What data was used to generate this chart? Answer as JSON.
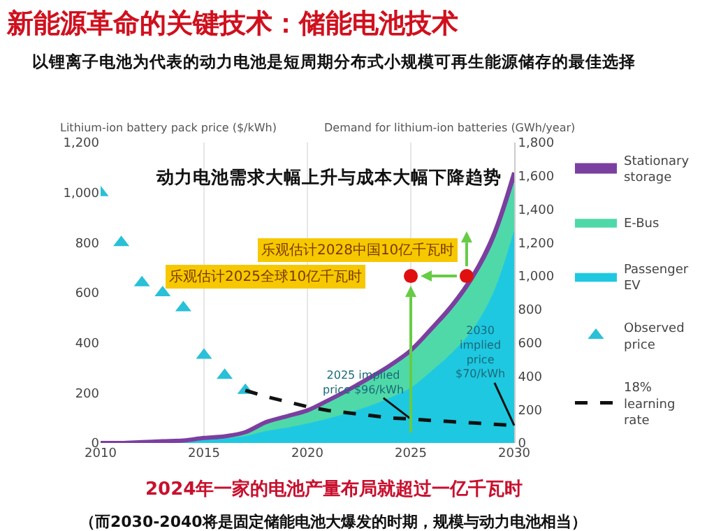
{
  "chart_data": {
    "type": "area",
    "stacked": true,
    "title": "新能源革命的关键技术：储能电池技术",
    "subtitle": "以锂离子电池为代表的动力电池是短周期分布式小规模可再生能源储存的最佳选择",
    "ylabel": "Lithium-ion battery pack price ($/kWh)",
    "y2label": "Demand for lithium-ion batteries (GWh/year)",
    "x": [
      2010,
      2011,
      2012,
      2013,
      2014,
      2015,
      2016,
      2017,
      2018,
      2019,
      2020,
      2021,
      2022,
      2023,
      2024,
      2025,
      2026,
      2027,
      2028,
      2029,
      2030
    ],
    "series": [
      {
        "name": "Passenger EV",
        "color": "#1ec8e0",
        "axis": "y2",
        "values": [
          0,
          0,
          5,
          5,
          10,
          20,
          25,
          40,
          70,
          90,
          115,
          145,
          180,
          220,
          270,
          330,
          430,
          540,
          680,
          900,
          1270
        ]
      },
      {
        "name": "E-Bus",
        "color": "#4fd9a8",
        "axis": "y2",
        "values": [
          0,
          0,
          0,
          5,
          5,
          10,
          15,
          25,
          50,
          65,
          75,
          105,
          130,
          160,
          185,
          210,
          235,
          260,
          290,
          300,
          290
        ]
      },
      {
        "name": "Stationary storage",
        "color": "#7b3fa0",
        "axis": "y2",
        "values": [
          0,
          0,
          0,
          0,
          0,
          0,
          0,
          0,
          5,
          5,
          5,
          5,
          10,
          10,
          10,
          15,
          20,
          25,
          30,
          45,
          60
        ]
      },
      {
        "name": "Observed price",
        "type": "scatter",
        "marker": "triangle",
        "color": "#29c0d8",
        "x": [
          2010,
          2011,
          2012,
          2013,
          2014,
          2015,
          2016,
          2017
        ],
        "values": [
          1000,
          800,
          640,
          600,
          540,
          350,
          270,
          210
        ]
      },
      {
        "name": "18% learning rate",
        "type": "line",
        "line_style": "dashed",
        "color": "#111111",
        "x": [
          2017,
          2018,
          2019,
          2020,
          2021,
          2022,
          2023,
          2024,
          2025,
          2026,
          2027,
          2028,
          2029,
          2030
        ],
        "values": [
          210,
          185,
          165,
          145,
          130,
          120,
          110,
          100,
          96,
          90,
          85,
          80,
          75,
          70
        ]
      },
      {
        "type": "scatter",
        "marker": "circle",
        "color": "#e01010",
        "axis": "y2",
        "x": [
          2025,
          2027.7
        ],
        "values": [
          1000,
          1000
        ]
      }
    ],
    "xlim": [
      2010,
      2030
    ],
    "xticks": [
      2010,
      2015,
      2020,
      2025,
      2030
    ],
    "ylim": [
      0,
      1200
    ],
    "yticks": [
      0,
      200,
      400,
      600,
      800,
      {
        "value": 1000,
        "label": "1,000"
      },
      {
        "value": 1200,
        "label": "1,200"
      }
    ],
    "y2lim": [
      0,
      1800
    ],
    "y2ticks": [
      0,
      200,
      400,
      600,
      800,
      {
        "value": 1000,
        "label": "1,000"
      },
      {
        "value": 1200,
        "label": "1,200"
      },
      {
        "value": 1400,
        "label": "1,400"
      },
      {
        "value": 1600,
        "label": "1,600"
      },
      {
        "value": 1800,
        "label": "1,800"
      }
    ],
    "grid": "x",
    "legend": "right",
    "annotations": [
      "动力电池需求大幅上升与成本大幅下降趋势",
      "乐观估计2025全球10亿千瓦时",
      "乐观估计2028中国10亿千瓦时",
      {
        "text": "2025 implied price $96/kWh",
        "x": 2025,
        "y": 96
      },
      {
        "text": "2030 implied price $70/kWh",
        "x": 2030,
        "y": 70
      },
      "2024年一家的电池产量布局就超过一亿千瓦时",
      "（而2030-2040将是固定储能电池大爆发的时期，规模与动力电池相当）"
    ]
  }
}
